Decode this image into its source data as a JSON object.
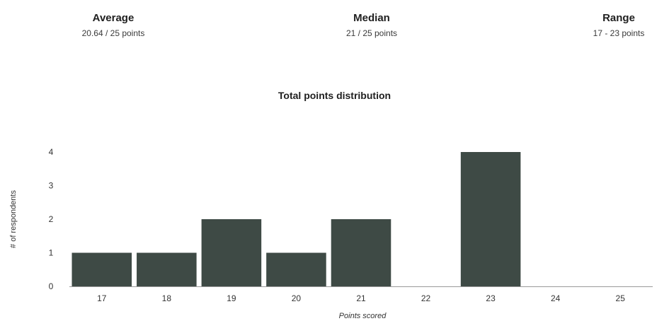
{
  "summary": {
    "average": {
      "label": "Average",
      "value": "20.64 / 25 points"
    },
    "median": {
      "label": "Median",
      "value": "21 / 25 points"
    },
    "range": {
      "label": "Range",
      "value": "17 - 23 points"
    }
  },
  "chart_data": {
    "type": "bar",
    "title": "Total points distribution",
    "xlabel": "Points scored",
    "ylabel": "# of respondents",
    "categories": [
      "17",
      "18",
      "19",
      "20",
      "21",
      "22",
      "23",
      "24",
      "25"
    ],
    "values": [
      1,
      1,
      2,
      1,
      2,
      0,
      4,
      0,
      0
    ],
    "ylim": [
      0,
      4
    ],
    "yticks": [
      0,
      1,
      2,
      3,
      4
    ],
    "grid": false,
    "bar_color": "#3e4a45"
  }
}
